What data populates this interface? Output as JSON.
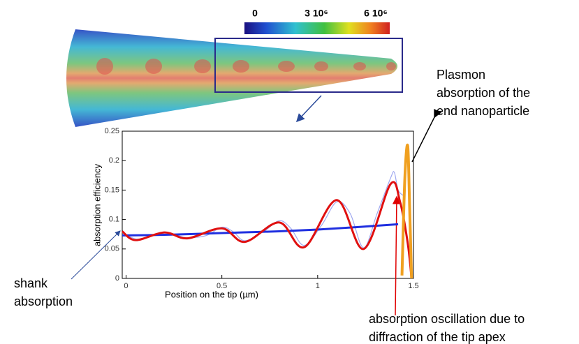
{
  "chart_data": {
    "type": "line",
    "colorbar_labels": [
      "0",
      "3 10⁶",
      "6 10⁶"
    ],
    "xlabel": "Position on the tip (µm)",
    "ylabel": "absorption efficiency",
    "xlim": [
      -0.02,
      1.5
    ],
    "xticks": [
      0,
      0.5,
      1,
      1.5
    ],
    "ylim": [
      0,
      0.25
    ],
    "yticks": [
      0,
      0.05,
      0.1,
      0.15,
      0.2,
      0.25
    ],
    "series": [
      {
        "color": "#9fa8f0",
        "x": [
          -0.02,
          0.05,
          0.12,
          0.2,
          0.26,
          0.32,
          0.42,
          0.5,
          0.56,
          0.62,
          0.72,
          0.8,
          0.86,
          0.93,
          1.02,
          1.1,
          1.17,
          1.24,
          1.31,
          1.38,
          1.4,
          1.42,
          1.45
        ],
        "values": [
          0.078,
          0.067,
          0.071,
          0.077,
          0.074,
          0.069,
          0.073,
          0.087,
          0.079,
          0.064,
          0.08,
          0.098,
          0.085,
          0.056,
          0.09,
          0.13,
          0.11,
          0.052,
          0.11,
          0.17,
          0.18,
          0.15,
          0.14
        ]
      },
      {
        "color": "#1f2fe0",
        "x": [
          -0.02,
          0.2,
          0.4,
          0.6,
          0.8,
          1.0,
          1.2,
          1.42
        ],
        "values": [
          0.073,
          0.074,
          0.076,
          0.078,
          0.08,
          0.083,
          0.087,
          0.092
        ]
      },
      {
        "color": "#e01010",
        "x": [
          -0.02,
          0.05,
          0.2,
          0.32,
          0.5,
          0.62,
          0.8,
          0.93,
          1.1,
          1.24,
          1.38,
          1.43,
          1.47,
          1.49
        ],
        "values": [
          0.08,
          0.065,
          0.078,
          0.068,
          0.085,
          0.062,
          0.095,
          0.053,
          0.133,
          0.05,
          0.16,
          0.13,
          0.06,
          0.0
        ]
      },
      {
        "color": "#f0a020",
        "x": [
          1.44,
          1.455,
          1.47,
          1.48,
          1.49
        ],
        "values": [
          0.005,
          0.17,
          0.225,
          0.12,
          0.0
        ]
      }
    ],
    "annotations": [
      {
        "lines": [
          "Plasmon",
          "absorption of the",
          "end nanoparticle"
        ],
        "color": "#000000"
      },
      {
        "lines": [
          "shank",
          "absorption"
        ],
        "color": "#000000"
      },
      {
        "lines": [
          "absorption oscillation due to",
          "diffraction of the tip apex"
        ],
        "color": "#e00000"
      }
    ]
  }
}
